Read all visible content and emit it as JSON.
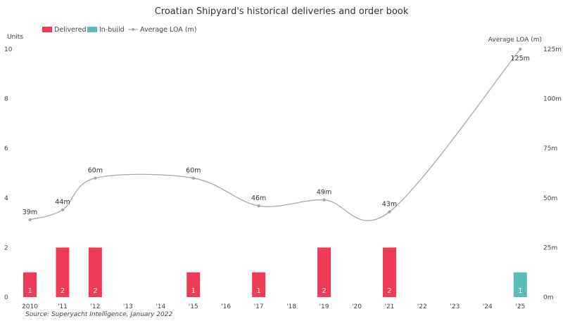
{
  "chart_data": {
    "type": "bar",
    "title": "Croatian Shipyard's historical deliveries and order book",
    "categories": [
      "2010",
      "'11",
      "'12",
      "'13",
      "'14",
      "'15",
      "'16",
      "'17",
      "'18",
      "'19",
      "'20",
      "'21",
      "'22",
      "'23",
      "'24",
      "'25"
    ],
    "series": [
      {
        "name": "Delivered",
        "kind": "bar",
        "color": "#ef3b56",
        "values": [
          1,
          2,
          2,
          0,
          0,
          1,
          0,
          1,
          0,
          2,
          0,
          2,
          0,
          0,
          0,
          0
        ],
        "labels": [
          "1",
          "2",
          "2",
          "",
          "",
          "1",
          "",
          "1",
          "",
          "2",
          "",
          "2",
          "",
          "",
          "",
          ""
        ]
      },
      {
        "name": "In-build",
        "kind": "bar",
        "color": "#5bbcb8",
        "values": [
          0,
          0,
          0,
          0,
          0,
          0,
          0,
          0,
          0,
          0,
          0,
          0,
          0,
          0,
          0,
          1
        ],
        "labels": [
          "",
          "",
          "",
          "",
          "",
          "",
          "",
          "",
          "",
          "",
          "",
          "",
          "",
          "",
          "",
          "1"
        ]
      },
      {
        "name": "Average LOA (m)",
        "kind": "line",
        "axis": "right",
        "color": "#a9a9a9",
        "points": [
          {
            "x": "2010",
            "y": 39,
            "label": "39m"
          },
          {
            "x": "'11",
            "y": 44,
            "label": "44m"
          },
          {
            "x": "'12",
            "y": 60,
            "label": "60m"
          },
          {
            "x": "'15",
            "y": 60,
            "label": "60m"
          },
          {
            "x": "'17",
            "y": 46,
            "label": "46m"
          },
          {
            "x": "'19",
            "y": 49,
            "label": "49m"
          },
          {
            "x": "'21",
            "y": 43,
            "label": "43m"
          },
          {
            "x": "'25",
            "y": 125,
            "label": "125m"
          }
        ]
      }
    ],
    "y_left": {
      "label": "Units",
      "ylim": [
        0,
        10
      ],
      "ticks": [
        "0",
        "2",
        "4",
        "6",
        "8",
        "10"
      ]
    },
    "y_right": {
      "label": "Average LOA (m)",
      "ylim": [
        0,
        125
      ],
      "ticks": [
        "0m",
        "25m",
        "50m",
        "75m",
        "100m",
        "125m"
      ]
    },
    "legend": [
      "Delivered",
      "In-build",
      "Average LOA (m)"
    ],
    "legend_position": "top-left",
    "grid": false,
    "source": "Source: Superyacht Intelligence, January 2022"
  }
}
